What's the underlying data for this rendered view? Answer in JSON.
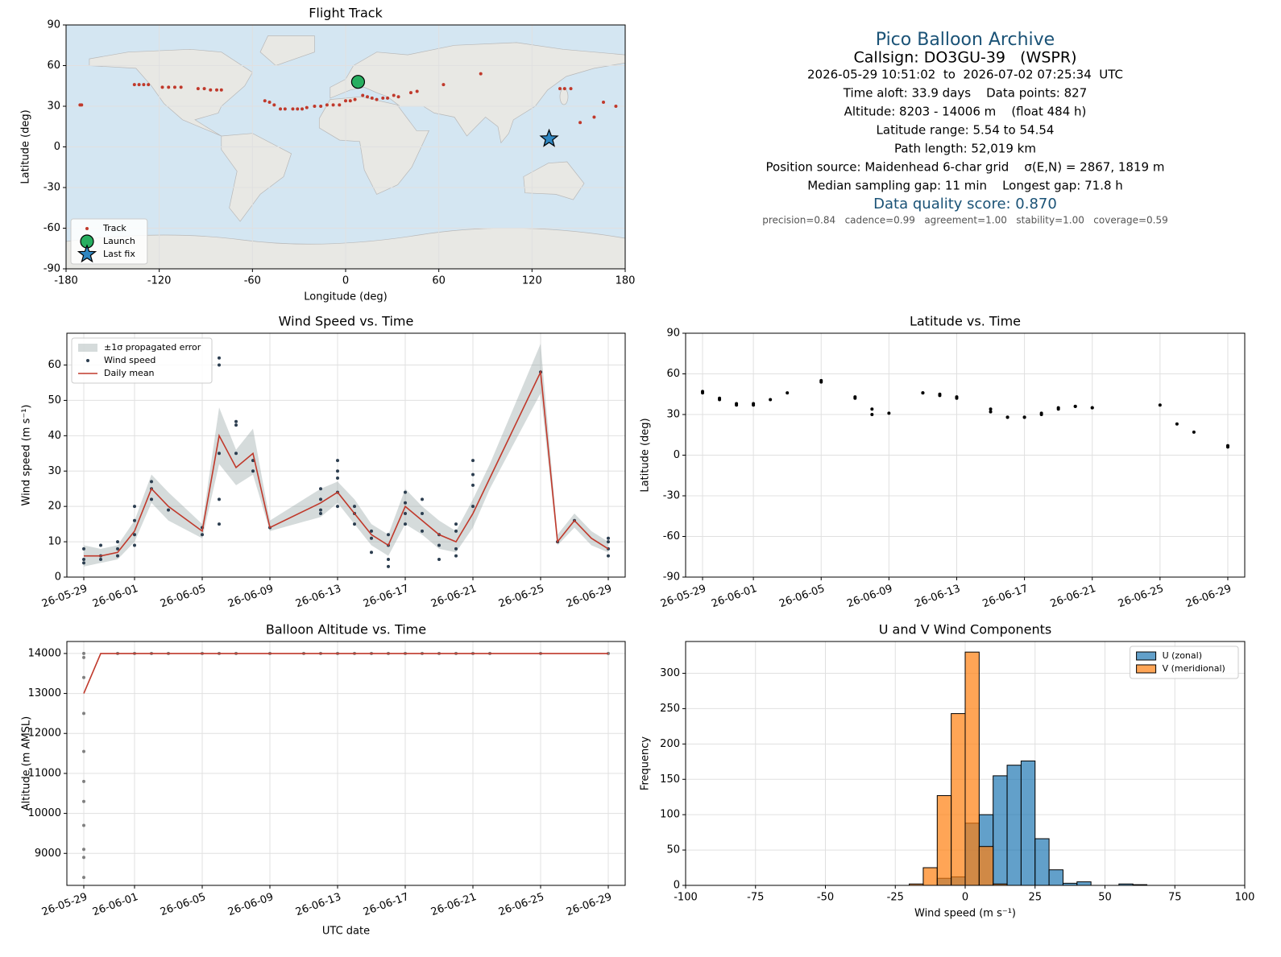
{
  "chart_data": [
    {
      "type": "scatter",
      "title": "Flight Track",
      "xlabel": "Longitude (deg)",
      "ylabel": "Latitude (deg)",
      "xlim": [
        -180,
        180
      ],
      "ylim": [
        -90,
        90
      ],
      "xticks": [
        -180,
        -120,
        -60,
        0,
        60,
        120,
        180
      ],
      "yticks": [
        -90,
        -60,
        -30,
        0,
        30,
        60,
        90
      ],
      "grid": true,
      "legend": "lower left",
      "series": [
        {
          "name": "Track",
          "kind": "scatter",
          "marker": "dot",
          "color": "#c0392b",
          "x": [
            -171,
            -170,
            -136,
            -133,
            -130,
            -127,
            -118,
            -114,
            -110,
            -106,
            -95,
            -91,
            -87,
            -83,
            -80,
            -52,
            -49,
            -46,
            -42,
            -39,
            -34,
            -31,
            -28,
            -25,
            -20,
            -16,
            -12,
            -8,
            -4,
            0,
            3,
            6,
            11,
            14,
            17,
            20,
            24,
            27,
            31,
            34,
            42,
            46,
            63,
            87,
            138,
            141,
            145,
            151,
            160,
            166,
            174
          ],
          "values": [
            31,
            31,
            46,
            46,
            46,
            46,
            44,
            44,
            44,
            44,
            43,
            43,
            42,
            42,
            42,
            34,
            33,
            31,
            28,
            28,
            28,
            28,
            28,
            29,
            30,
            30,
            31,
            31,
            31,
            34,
            34,
            35,
            38,
            37,
            36,
            35,
            36,
            36,
            38,
            37,
            40,
            41,
            46,
            54,
            43,
            43,
            43,
            18,
            22,
            33,
            30
          ]
        },
        {
          "name": "Launch",
          "kind": "scatter",
          "marker": "circle",
          "color": "#27ae60",
          "edgecolor": "#000000",
          "x": [
            8
          ],
          "values": [
            48
          ]
        },
        {
          "name": "Last fix",
          "kind": "scatter",
          "marker": "star",
          "color": "#2e86c1",
          "edgecolor": "#000000",
          "x": [
            131
          ],
          "values": [
            6
          ]
        }
      ]
    },
    {
      "type": "line",
      "title": "Wind Speed vs. Time",
      "ylabel": "Wind speed (m s⁻¹)",
      "xlim": [
        "26-05-28",
        "26-06-30"
      ],
      "ylim": [
        0,
        69
      ],
      "xticks": [
        "26-05-29",
        "26-06-01",
        "26-06-05",
        "26-06-09",
        "26-06-13",
        "26-06-17",
        "26-06-21",
        "26-06-25",
        "26-06-29"
      ],
      "yticks": [
        0,
        10,
        20,
        30,
        40,
        50,
        60
      ],
      "grid": true,
      "legend": "upper left",
      "series": [
        {
          "name": "±1σ propagated error",
          "kind": "band",
          "color": "#95a5a6",
          "x": [
            "26-05-29",
            "26-05-30",
            "26-05-31",
            "26-06-01",
            "26-06-02",
            "26-06-03",
            "26-06-05",
            "26-06-06",
            "26-06-07",
            "26-06-08",
            "26-06-09",
            "26-06-12",
            "26-06-13",
            "26-06-14",
            "26-06-15",
            "26-06-16",
            "26-06-17",
            "26-06-18",
            "26-06-19",
            "26-06-20",
            "26-06-21",
            "26-06-22",
            "26-06-25",
            "26-06-26",
            "26-06-27",
            "26-06-28",
            "26-06-29"
          ],
          "lower": [
            3,
            4,
            5,
            10,
            21,
            16,
            11,
            32,
            26,
            29,
            13,
            17,
            21,
            15,
            9,
            6,
            15,
            12,
            8,
            7,
            14,
            25,
            52,
            9,
            14,
            9,
            7
          ],
          "upper": [
            9,
            8,
            9,
            16,
            29,
            24,
            15,
            48,
            36,
            42,
            16,
            25,
            27,
            22,
            15,
            12,
            25,
            20,
            16,
            13,
            22,
            32,
            66,
            12,
            18,
            13,
            10
          ]
        },
        {
          "name": "Wind speed",
          "kind": "scatter",
          "marker": "dot",
          "color": "#2c3e50",
          "x": [
            "26-05-29",
            "26-05-29",
            "26-05-29",
            "26-05-30",
            "26-05-30",
            "26-05-30",
            "26-05-31",
            "26-05-31",
            "26-05-31",
            "26-06-01",
            "26-06-01",
            "26-06-01",
            "26-06-01",
            "26-06-02",
            "26-06-02",
            "26-06-02",
            "26-06-03",
            "26-06-05",
            "26-06-05",
            "26-06-06",
            "26-06-06",
            "26-06-06",
            "26-06-06",
            "26-06-06",
            "26-06-07",
            "26-06-07",
            "26-06-07",
            "26-06-08",
            "26-06-08",
            "26-06-09",
            "26-06-12",
            "26-06-12",
            "26-06-12",
            "26-06-12",
            "26-06-13",
            "26-06-13",
            "26-06-13",
            "26-06-13",
            "26-06-13",
            "26-06-14",
            "26-06-14",
            "26-06-14",
            "26-06-15",
            "26-06-15",
            "26-06-15",
            "26-06-16",
            "26-06-16",
            "26-06-16",
            "26-06-16",
            "26-06-17",
            "26-06-17",
            "26-06-17",
            "26-06-17",
            "26-06-18",
            "26-06-18",
            "26-06-18",
            "26-06-19",
            "26-06-19",
            "26-06-19",
            "26-06-20",
            "26-06-20",
            "26-06-20",
            "26-06-20",
            "26-06-21",
            "26-06-21",
            "26-06-21",
            "26-06-21",
            "26-06-25",
            "26-06-26",
            "26-06-27",
            "26-06-29",
            "26-06-29",
            "26-06-29",
            "26-06-29"
          ],
          "values": [
            5,
            8,
            4,
            6,
            9,
            5,
            8,
            10,
            6,
            12,
            16,
            20,
            9,
            25,
            27,
            22,
            19,
            12,
            14,
            60,
            62,
            35,
            22,
            15,
            43,
            44,
            35,
            33,
            30,
            14,
            18,
            22,
            25,
            19,
            24,
            28,
            20,
            33,
            30,
            20,
            15,
            18,
            11,
            7,
            13,
            5,
            9,
            12,
            3,
            15,
            21,
            18,
            24,
            22,
            18,
            13,
            5,
            12,
            9,
            8,
            13,
            15,
            6,
            20,
            26,
            29,
            33,
            58,
            10,
            16,
            11,
            8,
            6,
            10
          ]
        },
        {
          "name": "Daily mean",
          "kind": "line",
          "color": "#c0392b",
          "x": [
            "26-05-29",
            "26-05-30",
            "26-05-31",
            "26-06-01",
            "26-06-02",
            "26-06-03",
            "26-06-05",
            "26-06-06",
            "26-06-07",
            "26-06-08",
            "26-06-09",
            "26-06-12",
            "26-06-13",
            "26-06-14",
            "26-06-15",
            "26-06-16",
            "26-06-17",
            "26-06-18",
            "26-06-19",
            "26-06-20",
            "26-06-21",
            "26-06-22",
            "26-06-25",
            "26-06-26",
            "26-06-27",
            "26-06-28",
            "26-06-29"
          ],
          "values": [
            6,
            6,
            7,
            13,
            25,
            20,
            13,
            40,
            31,
            35,
            14,
            21,
            24,
            18,
            12,
            9,
            20,
            16,
            12,
            10,
            18,
            28,
            58,
            10,
            16,
            11,
            8
          ]
        }
      ]
    },
    {
      "type": "scatter",
      "title": "Latitude vs. Time",
      "ylabel": "Latitude (deg)",
      "xlim": [
        "26-05-28",
        "26-06-30"
      ],
      "ylim": [
        -90,
        90
      ],
      "xticks": [
        "26-05-29",
        "26-06-01",
        "26-06-05",
        "26-06-09",
        "26-06-13",
        "26-06-17",
        "26-06-21",
        "26-06-25",
        "26-06-29"
      ],
      "yticks": [
        -90,
        -60,
        -30,
        0,
        30,
        60,
        90
      ],
      "grid": true,
      "series": [
        {
          "kind": "scatter",
          "marker": "dot",
          "color": "#000000",
          "x": [
            "26-05-29",
            "26-05-29",
            "26-05-30",
            "26-05-30",
            "26-05-31",
            "26-05-31",
            "26-06-01",
            "26-06-01",
            "26-06-02",
            "26-06-03",
            "26-06-05",
            "26-06-05",
            "26-06-07",
            "26-06-07",
            "26-06-08",
            "26-06-08",
            "26-06-09",
            "26-06-11",
            "26-06-11",
            "26-06-12",
            "26-06-12",
            "26-06-13",
            "26-06-13",
            "26-06-15",
            "26-06-15",
            "26-06-16",
            "26-06-16",
            "26-06-17",
            "26-06-17",
            "26-06-18",
            "26-06-18",
            "26-06-19",
            "26-06-19",
            "26-06-20",
            "26-06-20",
            "26-06-21",
            "26-06-21",
            "26-06-25",
            "26-06-26",
            "26-06-27",
            "26-06-29",
            "26-06-29"
          ],
          "values": [
            47,
            46,
            42,
            41,
            38,
            37,
            37,
            38,
            41,
            46,
            55,
            54,
            43,
            42,
            34,
            30,
            31,
            46,
            46,
            45,
            44,
            43,
            42,
            34,
            32,
            28,
            28,
            28,
            28,
            30,
            31,
            34,
            35,
            36,
            36,
            35,
            35,
            37,
            23,
            17,
            7,
            6
          ]
        }
      ]
    },
    {
      "type": "line",
      "title": "Balloon Altitude vs. Time",
      "xlabel": "UTC date",
      "ylabel": "Altitude (m AMSL)",
      "xlim": [
        "26-05-28",
        "26-06-30"
      ],
      "ylim": [
        8200,
        14300
      ],
      "xticks": [
        "26-05-29",
        "26-06-01",
        "26-06-05",
        "26-06-09",
        "26-06-13",
        "26-06-17",
        "26-06-21",
        "26-06-25",
        "26-06-29"
      ],
      "yticks": [
        9000,
        10000,
        11000,
        12000,
        13000,
        14000
      ],
      "grid": true,
      "series": [
        {
          "kind": "scatter",
          "marker": "dot",
          "color": "#808080",
          "x": [
            "26-05-29",
            "26-05-29",
            "26-05-29",
            "26-05-29",
            "26-05-29",
            "26-05-29",
            "26-05-29",
            "26-05-29",
            "26-05-29",
            "26-05-29",
            "26-05-29",
            "26-05-31",
            "26-06-01",
            "26-06-02",
            "26-06-03",
            "26-06-05",
            "26-06-06",
            "26-06-07",
            "26-06-09",
            "26-06-11",
            "26-06-12",
            "26-06-13",
            "26-06-14",
            "26-06-15",
            "26-06-16",
            "26-06-17",
            "26-06-18",
            "26-06-19",
            "26-06-20",
            "26-06-21",
            "26-06-22",
            "26-06-25",
            "26-06-29"
          ],
          "values": [
            8400,
            8900,
            9100,
            9700,
            10300,
            10800,
            11550,
            12500,
            13400,
            13900,
            14000,
            14000,
            14000,
            14000,
            14000,
            14000,
            14000,
            14000,
            14000,
            14000,
            14000,
            14000,
            14000,
            14000,
            14000,
            14000,
            14000,
            14000,
            14000,
            14000,
            14000,
            14000,
            14000
          ]
        },
        {
          "kind": "line",
          "color": "#c0392b",
          "x": [
            "26-05-29",
            "26-05-30",
            "26-06-29"
          ],
          "values": [
            13000,
            14000,
            14000
          ]
        }
      ]
    },
    {
      "type": "histogram",
      "title": "U and V Wind Components",
      "xlabel": "Wind speed (m s⁻¹)",
      "ylabel": "Frequency",
      "xlim": [
        -100,
        100
      ],
      "ylim": [
        0,
        345
      ],
      "xticks": [
        -100,
        -75,
        -50,
        -25,
        0,
        25,
        50,
        75,
        100
      ],
      "yticks": [
        0,
        50,
        100,
        150,
        200,
        250,
        300
      ],
      "grid": true,
      "legend": "upper right",
      "alpha": 0.7,
      "edgecolor": "#000000",
      "bins": [
        -20,
        -15,
        -10,
        -5,
        0,
        5,
        10,
        15,
        20,
        25,
        30,
        35,
        40,
        45,
        50,
        55,
        60,
        65
      ],
      "series": [
        {
          "name": "U (zonal)",
          "color": "#1f77b4",
          "values": [
            0,
            0,
            10,
            12,
            88,
            100,
            155,
            170,
            176,
            66,
            22,
            3,
            5,
            0,
            0,
            2,
            1
          ]
        },
        {
          "name": "V (meridional)",
          "color": "#ff7f0e",
          "values": [
            2,
            25,
            127,
            243,
            330,
            55,
            2,
            0,
            0,
            0,
            0,
            0,
            0,
            0,
            0,
            0,
            0
          ]
        }
      ]
    }
  ],
  "summary": {
    "title": "Pico Balloon Archive",
    "callsign": "Callsign: DO3GU-39   (WSPR)",
    "lines": [
      "2026-05-29 10:51:02  to  2026-07-02 07:25:34  UTC",
      "Time aloft: 33.9 days    Data points: 827",
      "Altitude: 8203 - 14006 m    (float 484 h)",
      "Latitude range: 5.54 to 54.54",
      "Path length: 52,019 km",
      "Position source: Maidenhead 6-char grid    σ(E,N) = 2867, 1819 m",
      "Median sampling gap: 11 min    Longest gap: 71.8 h"
    ],
    "score": "Data quality score: 0.870",
    "components": "precision=0.84   cadence=0.99   agreement=1.00   stability=1.00   coverage=0.59"
  }
}
